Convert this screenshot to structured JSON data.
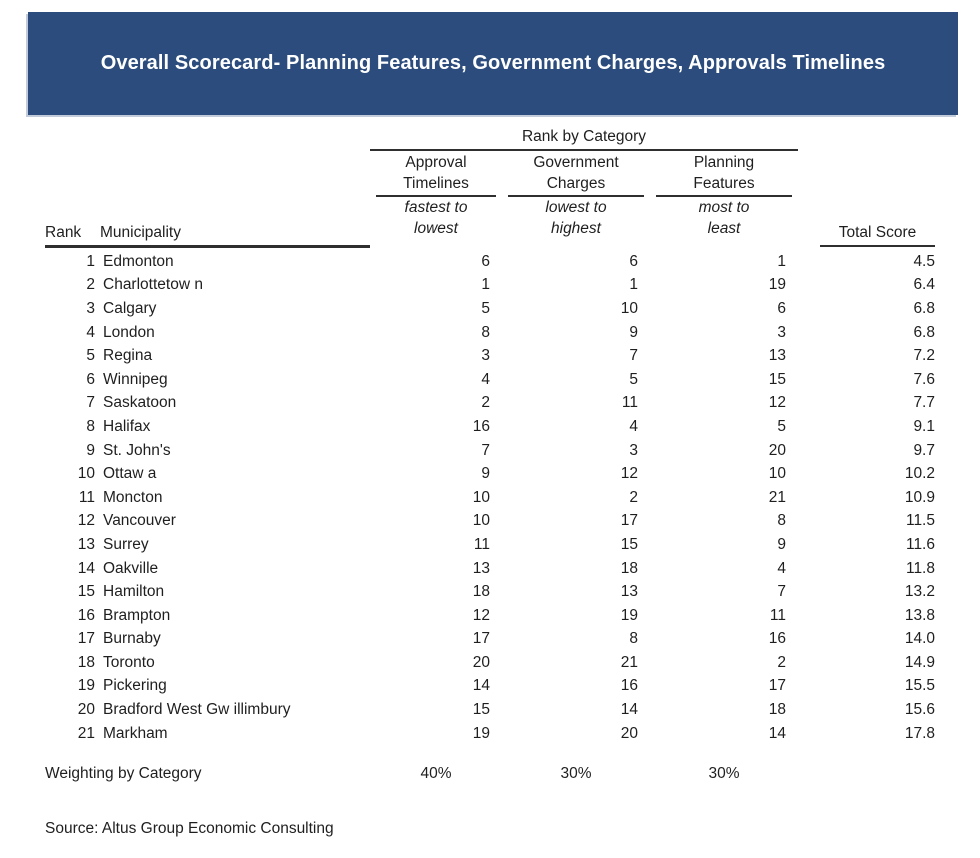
{
  "colors": {
    "banner_bg": "#2b4c7c",
    "banner_text": "#ffffff",
    "text": "#1f1f1f",
    "rule": "#2f2f2f",
    "page_bg": "#ffffff"
  },
  "chart_data": {
    "type": "table",
    "title": "Overall Scorecard- Planning Features, Government Charges, Approvals Timelines",
    "group_header": "Rank by Category",
    "header": {
      "rank": "Rank",
      "municipality": "Municipality",
      "total_score": "Total Score",
      "categories": [
        {
          "name": [
            "Approval",
            "Timelines"
          ],
          "order": [
            "fastest to",
            "lowest"
          ]
        },
        {
          "name": [
            "Government",
            "Charges"
          ],
          "order": [
            "lowest to",
            "highest"
          ]
        },
        {
          "name": [
            "Planning",
            "Features"
          ],
          "order": [
            "most to",
            "least"
          ]
        }
      ]
    },
    "rows": [
      {
        "rank": "1",
        "municipality": "Edmonton",
        "approval_timelines": "6",
        "government_charges": "6",
        "planning_features": "1",
        "total_score": "4.5"
      },
      {
        "rank": "2",
        "municipality": "Charlottetow n",
        "approval_timelines": "1",
        "government_charges": "1",
        "planning_features": "19",
        "total_score": "6.4"
      },
      {
        "rank": "3",
        "municipality": "Calgary",
        "approval_timelines": "5",
        "government_charges": "10",
        "planning_features": "6",
        "total_score": "6.8"
      },
      {
        "rank": "4",
        "municipality": "London",
        "approval_timelines": "8",
        "government_charges": "9",
        "planning_features": "3",
        "total_score": "6.8"
      },
      {
        "rank": "5",
        "municipality": "Regina",
        "approval_timelines": "3",
        "government_charges": "7",
        "planning_features": "13",
        "total_score": "7.2"
      },
      {
        "rank": "6",
        "municipality": "Winnipeg",
        "approval_timelines": "4",
        "government_charges": "5",
        "planning_features": "15",
        "total_score": "7.6"
      },
      {
        "rank": "7",
        "municipality": "Saskatoon",
        "approval_timelines": "2",
        "government_charges": "11",
        "planning_features": "12",
        "total_score": "7.7"
      },
      {
        "rank": "8",
        "municipality": "Halifax",
        "approval_timelines": "16",
        "government_charges": "4",
        "planning_features": "5",
        "total_score": "9.1"
      },
      {
        "rank": "9",
        "municipality": "St. John's",
        "approval_timelines": "7",
        "government_charges": "3",
        "planning_features": "20",
        "total_score": "9.7"
      },
      {
        "rank": "10",
        "municipality": "Ottaw a",
        "approval_timelines": "9",
        "government_charges": "12",
        "planning_features": "10",
        "total_score": "10.2"
      },
      {
        "rank": "11",
        "municipality": "Moncton",
        "approval_timelines": "10",
        "government_charges": "2",
        "planning_features": "21",
        "total_score": "10.9"
      },
      {
        "rank": "12",
        "municipality": "Vancouver",
        "approval_timelines": "10",
        "government_charges": "17",
        "planning_features": "8",
        "total_score": "11.5"
      },
      {
        "rank": "13",
        "municipality": "Surrey",
        "approval_timelines": "11",
        "government_charges": "15",
        "planning_features": "9",
        "total_score": "11.6"
      },
      {
        "rank": "14",
        "municipality": "Oakville",
        "approval_timelines": "13",
        "government_charges": "18",
        "planning_features": "4",
        "total_score": "11.8"
      },
      {
        "rank": "15",
        "municipality": "Hamilton",
        "approval_timelines": "18",
        "government_charges": "13",
        "planning_features": "7",
        "total_score": "13.2"
      },
      {
        "rank": "16",
        "municipality": "Brampton",
        "approval_timelines": "12",
        "government_charges": "19",
        "planning_features": "11",
        "total_score": "13.8"
      },
      {
        "rank": "17",
        "municipality": "Burnaby",
        "approval_timelines": "17",
        "government_charges": "8",
        "planning_features": "16",
        "total_score": "14.0"
      },
      {
        "rank": "18",
        "municipality": "Toronto",
        "approval_timelines": "20",
        "government_charges": "21",
        "planning_features": "2",
        "total_score": "14.9"
      },
      {
        "rank": "19",
        "municipality": "Pickering",
        "approval_timelines": "14",
        "government_charges": "16",
        "planning_features": "17",
        "total_score": "15.5"
      },
      {
        "rank": "20",
        "municipality": "Bradford West Gw illimbury",
        "approval_timelines": "15",
        "government_charges": "14",
        "planning_features": "18",
        "total_score": "15.6"
      },
      {
        "rank": "21",
        "municipality": "Markham",
        "approval_timelines": "19",
        "government_charges": "20",
        "planning_features": "14",
        "total_score": "17.8"
      }
    ],
    "weighting": {
      "label": "Weighting by Category",
      "values": [
        "40%",
        "30%",
        "30%"
      ]
    },
    "source": "Source: Altus Group Economic Consulting"
  }
}
